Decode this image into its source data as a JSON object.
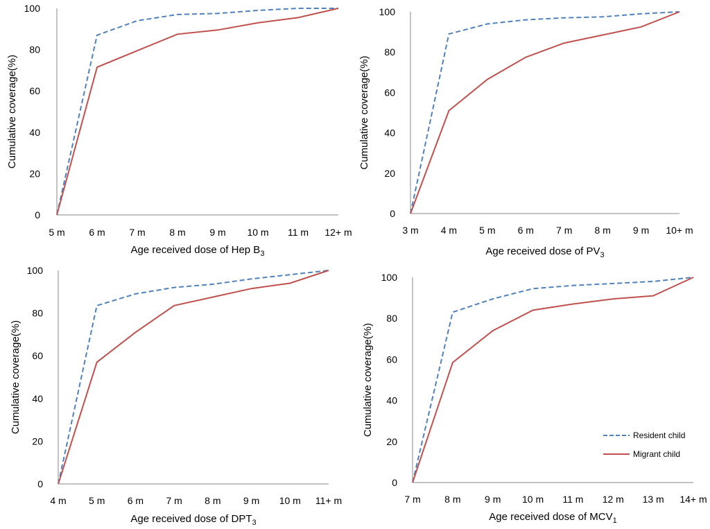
{
  "legend": {
    "resident_label": "Resident child",
    "migrant_label": "Migrant child"
  },
  "colors": {
    "resident": "#4F81BD",
    "migrant": "#C0504D"
  },
  "chart_data": [
    {
      "type": "line",
      "title": "",
      "xlabel": "Age received dose of Hep B",
      "xlabel_sub": "3",
      "ylabel": "Cumulative coverage(%)",
      "categories": [
        "5 m",
        "6 m",
        "7 m",
        "8 m",
        "9 m",
        "10 m",
        "11 m",
        "12+ m"
      ],
      "yticks": [
        "0",
        "20",
        "40",
        "60",
        "80",
        "100"
      ],
      "ylim": [
        0,
        100
      ],
      "series": [
        {
          "name": "Resident child",
          "values": [
            0,
            87,
            94,
            97,
            97.5,
            99,
            100,
            100
          ]
        },
        {
          "name": "Migrant child",
          "values": [
            0,
            71.5,
            79.5,
            87.5,
            89.5,
            93,
            95.5,
            100
          ]
        }
      ]
    },
    {
      "type": "line",
      "title": "",
      "xlabel": "Age received dose of PV",
      "xlabel_sub": "3",
      "ylabel": "Cumulative coverage(%)",
      "categories": [
        "3 m",
        "4 m",
        "5 m",
        "6 m",
        "7 m",
        "8 m",
        "9 m",
        "10+ m"
      ],
      "yticks": [
        "0",
        "20",
        "40",
        "60",
        "80",
        "100"
      ],
      "ylim": [
        0,
        100
      ],
      "series": [
        {
          "name": "Resident child",
          "values": [
            0,
            89,
            94,
            96,
            97,
            97.5,
            99,
            100
          ]
        },
        {
          "name": "Migrant child",
          "values": [
            0,
            51,
            66.5,
            77.5,
            84.5,
            88.5,
            92.5,
            100
          ]
        }
      ]
    },
    {
      "type": "line",
      "title": "",
      "xlabel": "Age received dose of DPT",
      "xlabel_sub": "3",
      "ylabel": "Cumulative coverage(%)",
      "categories": [
        "4 m",
        "5 m",
        "6 m",
        "7 m",
        "8 m",
        "9 m",
        "10 m",
        "11+ m"
      ],
      "yticks": [
        "0",
        "20",
        "40",
        "60",
        "80",
        "100"
      ],
      "ylim": [
        0,
        100
      ],
      "series": [
        {
          "name": "Resident child",
          "values": [
            0,
            83.5,
            89,
            92,
            93.5,
            96,
            98,
            100
          ]
        },
        {
          "name": "Migrant child",
          "values": [
            0,
            57,
            71,
            83.5,
            87.5,
            91.5,
            94,
            100
          ]
        }
      ]
    },
    {
      "type": "line",
      "title": "",
      "xlabel": "Age received dose of MCV",
      "xlabel_sub": "1",
      "ylabel": "Cumulative coverage(%)",
      "categories": [
        "7 m",
        "8 m",
        "9 m",
        "10 m",
        "11 m",
        "12 m",
        "13 m",
        "14+ m"
      ],
      "yticks": [
        "0",
        "20",
        "40",
        "60",
        "80",
        "100"
      ],
      "ylim": [
        0,
        100
      ],
      "series": [
        {
          "name": "Resident child",
          "values": [
            0,
            83,
            89.5,
            94.5,
            96,
            97,
            98,
            100
          ]
        },
        {
          "name": "Migrant child",
          "values": [
            0,
            58.5,
            74,
            84,
            87,
            89.5,
            91,
            100
          ]
        }
      ]
    }
  ]
}
